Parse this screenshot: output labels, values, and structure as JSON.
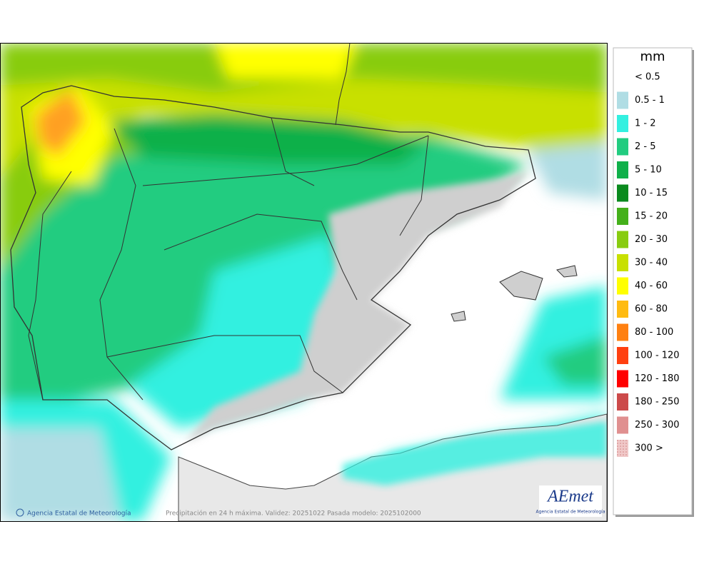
{
  "legend": {
    "title": "mm",
    "items": [
      {
        "label": "< 0.5",
        "color": null
      },
      {
        "label": "0.5 - 1",
        "color": "#b0dde4"
      },
      {
        "label": "1 - 2",
        "color": "#33f0e0"
      },
      {
        "label": "2 - 5",
        "color": "#22cc80"
      },
      {
        "label": "5 - 10",
        "color": "#10b04a"
      },
      {
        "label": "10 - 15",
        "color": "#0a8a1e"
      },
      {
        "label": "15 - 20",
        "color": "#44b01a"
      },
      {
        "label": "20 - 30",
        "color": "#88cc10"
      },
      {
        "label": "30 - 40",
        "color": "#c8e000"
      },
      {
        "label": "40 - 60",
        "color": "#ffff00"
      },
      {
        "label": "60 - 80",
        "color": "#ffbb10"
      },
      {
        "label": "80 - 100",
        "color": "#ff8010"
      },
      {
        "label": "100 - 120",
        "color": "#ff4010"
      },
      {
        "label": "120 - 180",
        "color": "#ff0000"
      },
      {
        "label": "180 - 250",
        "color": "#cc4a4a"
      },
      {
        "label": "250 - 300",
        "color": "#e09090"
      },
      {
        "label": "300 >",
        "color": "#f0c8c8"
      }
    ]
  },
  "footer": {
    "credit": "Agencia Estatal de Meteorología",
    "caption": "Precipitación en 24 h máxima. Validez: 20251022 Pasada modelo: 2025102000"
  },
  "logo": {
    "name": "AEmet",
    "subtitle": "Agencia Estatal de Meteorología"
  }
}
